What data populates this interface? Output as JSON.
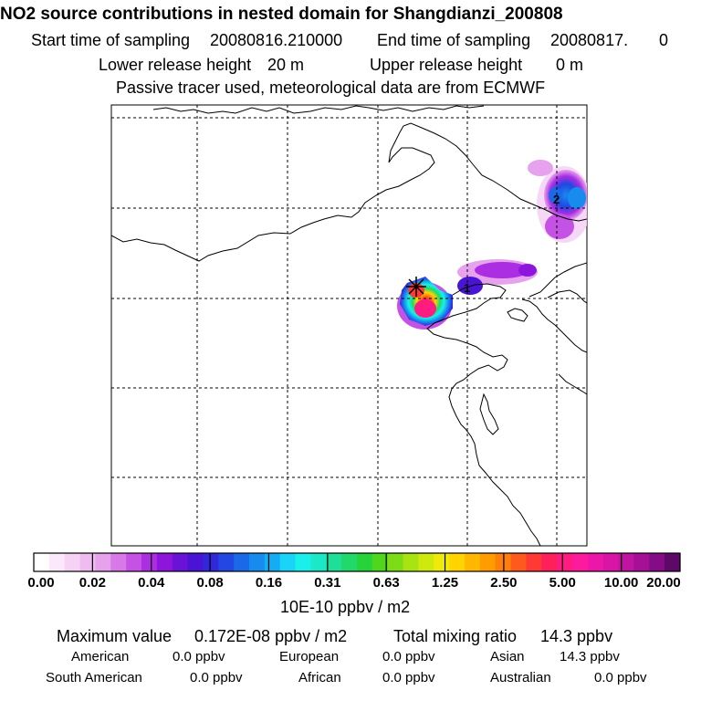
{
  "title": "NO2 source contributions in nested domain for Shangdianzi_200808",
  "sampling": {
    "start_label": "Start time of sampling",
    "start_value": "20080816.210000",
    "end_label": "End time of sampling",
    "end_value": "20080817.",
    "end_suffix": "0"
  },
  "release": {
    "lower_label": "Lower release height",
    "lower_value": "20 m",
    "upper_label": "Upper release height",
    "upper_value": "0 m"
  },
  "note": "Passive tracer used, meteorological data are from ECMWF",
  "map": {
    "markers": [
      {
        "label": "1",
        "kind": "endpoint-number"
      },
      {
        "label": "2",
        "kind": "endpoint-number"
      }
    ],
    "receptor_symbol": "*"
  },
  "colorbar": {
    "tick_labels": [
      "0.00",
      "0.02",
      "0.04",
      "0.08",
      "0.16",
      "0.31",
      "0.63",
      "1.25",
      "2.50",
      "5.00",
      "10.00",
      "20.00"
    ],
    "unit": "10E-10 ppbv / m2",
    "colors": [
      "#ffffff",
      "#fbe9fb",
      "#f6d3f6",
      "#efbcf1",
      "#e6a2ec",
      "#d779e7",
      "#c452e4",
      "#ab2ee3",
      "#8e16dc",
      "#6a12d6",
      "#4a14d4",
      "#3227db",
      "#2247e2",
      "#1b69e8",
      "#178bee",
      "#13adf3",
      "#19d4f6",
      "#19f0ea",
      "#1ae8c8",
      "#1ddf9a",
      "#21d96a",
      "#26d33a",
      "#50d61c",
      "#7ddc17",
      "#a8e312",
      "#cfe80e",
      "#f0ea0a",
      "#ffd400",
      "#ffb800",
      "#ff9c00",
      "#ff7f0a",
      "#ff5a1e",
      "#ff3a35",
      "#ff1f5a",
      "#ff1b80",
      "#fd1a9f",
      "#ec17a8",
      "#d815a5",
      "#c0139f",
      "#a51096",
      "#840c86",
      "#5e0867"
    ]
  },
  "stats": {
    "max_label": "Maximum value",
    "max_value": "0.172E-08 ppbv / m2",
    "total_label": "Total mixing ratio",
    "total_value": "14.3 ppbv",
    "regions": [
      {
        "name": "American",
        "value": "0.0 ppbv"
      },
      {
        "name": "European",
        "value": "0.0 ppbv"
      },
      {
        "name": "Asian",
        "value": "14.3 ppbv"
      },
      {
        "name": "South American",
        "value": "0.0 ppbv"
      },
      {
        "name": "African",
        "value": "0.0 ppbv"
      },
      {
        "name": "Australian",
        "value": "0.0 ppbv"
      }
    ]
  }
}
